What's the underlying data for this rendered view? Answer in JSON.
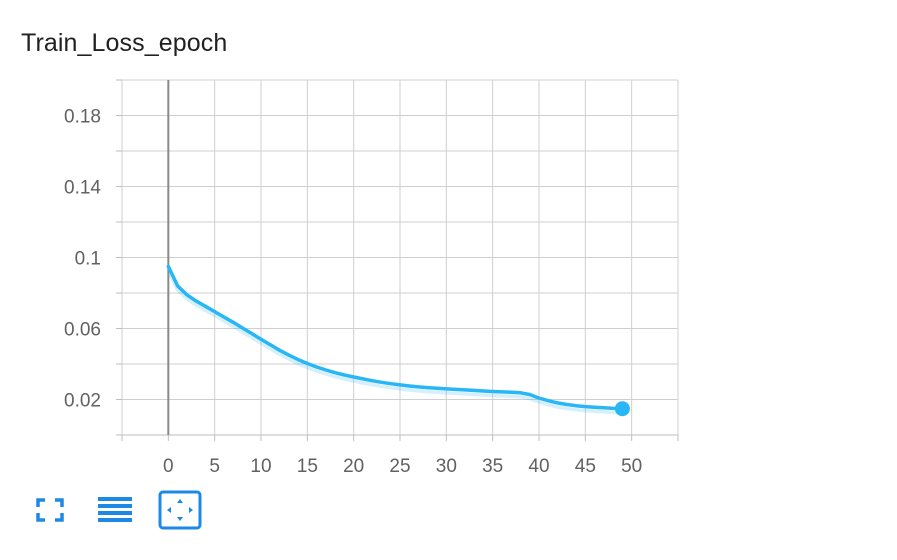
{
  "card": {
    "title": "Train_Loss_epoch"
  },
  "chart_data": {
    "type": "line",
    "title": "Train_Loss_epoch",
    "xlabel": "",
    "ylabel": "",
    "xlim": [
      -5,
      55
    ],
    "ylim": [
      0,
      0.2
    ],
    "grid": true,
    "x_ticks": [
      0,
      5,
      10,
      15,
      20,
      25,
      30,
      35,
      40,
      45,
      50
    ],
    "y_ticks": [
      0.02,
      0.06,
      0.1,
      0.14,
      0.18
    ],
    "y_tick_labels": [
      "0.02",
      "0.06",
      "0.1",
      "0.14",
      "0.18"
    ],
    "series": [
      {
        "color": "#29b6f6",
        "x": [
          0,
          1,
          2,
          3,
          4,
          5,
          6,
          7,
          8,
          9,
          10,
          11,
          12,
          13,
          14,
          15,
          16,
          17,
          18,
          19,
          20,
          21,
          22,
          23,
          24,
          25,
          26,
          27,
          28,
          29,
          30,
          31,
          32,
          33,
          34,
          35,
          36,
          37,
          38,
          39,
          40,
          41,
          42,
          43,
          44,
          45,
          46,
          47,
          48,
          49
        ],
        "values": [
          0.095,
          0.084,
          0.079,
          0.0755,
          0.0725,
          0.0695,
          0.0665,
          0.0635,
          0.0603,
          0.0572,
          0.054,
          0.0508,
          0.0478,
          0.045,
          0.0425,
          0.0403,
          0.0383,
          0.0366,
          0.0351,
          0.0338,
          0.0327,
          0.0316,
          0.0306,
          0.0297,
          0.0289,
          0.0282,
          0.0276,
          0.0271,
          0.0267,
          0.0263,
          0.026,
          0.0257,
          0.0254,
          0.0251,
          0.0248,
          0.0245,
          0.0243,
          0.0241,
          0.0238,
          0.0228,
          0.0208,
          0.0193,
          0.0181,
          0.0172,
          0.0165,
          0.016,
          0.0156,
          0.0153,
          0.015,
          0.0148
        ]
      }
    ]
  },
  "toolbar": {
    "icons": [
      "fullscreen-icon",
      "legend-icon",
      "fit-domain-icon"
    ],
    "accent": "#1e88e5"
  }
}
